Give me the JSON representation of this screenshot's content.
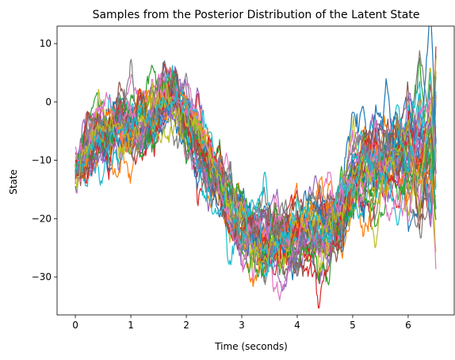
{
  "chart_data": {
    "type": "line",
    "title": "Samples from the Posterior Distribution of the Latent State",
    "xlabel": "Time (seconds)",
    "ylabel": "State",
    "xlim": [
      -0.33,
      6.83
    ],
    "ylim": [
      -36.5,
      13
    ],
    "xticks": [
      0,
      1,
      2,
      3,
      4,
      5,
      6
    ],
    "yticks": [
      -30,
      -20,
      -10,
      0,
      10
    ],
    "ytick_labels": [
      "−30",
      "−20",
      "−10",
      "0",
      "10"
    ],
    "grid": false,
    "legend": "none",
    "colors": [
      "#1f77b4",
      "#ff7f0e",
      "#2ca02c",
      "#d62728",
      "#9467bd",
      "#8c564b",
      "#e377c2",
      "#7f7f7f",
      "#bcbd22",
      "#17becf"
    ],
    "x_range": [
      0,
      6.5
    ],
    "n_samples": 40,
    "anchors": [
      {
        "t": 0.0,
        "y": -12,
        "sd": 0
      },
      {
        "t": 0.2,
        "y": -8,
        "sd": 2
      },
      {
        "t": 0.4,
        "y": -5,
        "sd": 3
      },
      {
        "t": 0.6,
        "y": -6,
        "sd": 3
      },
      {
        "t": 0.8,
        "y": -4,
        "sd": 3
      },
      {
        "t": 1.0,
        "y": -5,
        "sd": 3
      },
      {
        "t": 1.2,
        "y": -5,
        "sd": 3
      },
      {
        "t": 1.4,
        "y": -2,
        "sd": 3
      },
      {
        "t": 1.6,
        "y": 1,
        "sd": 3
      },
      {
        "t": 1.8,
        "y": 1,
        "sd": 2.5
      },
      {
        "t": 2.0,
        "y": -3,
        "sd": 3
      },
      {
        "t": 2.2,
        "y": -7,
        "sd": 3
      },
      {
        "t": 2.4,
        "y": -11,
        "sd": 3
      },
      {
        "t": 2.6,
        "y": -14,
        "sd": 3
      },
      {
        "t": 2.8,
        "y": -18,
        "sd": 3
      },
      {
        "t": 3.0,
        "y": -21,
        "sd": 3
      },
      {
        "t": 3.2,
        "y": -23,
        "sd": 3
      },
      {
        "t": 3.4,
        "y": -24,
        "sd": 3
      },
      {
        "t": 3.6,
        "y": -23,
        "sd": 3
      },
      {
        "t": 3.8,
        "y": -24,
        "sd": 3.5
      },
      {
        "t": 4.0,
        "y": -23,
        "sd": 3.5
      },
      {
        "t": 4.2,
        "y": -22,
        "sd": 3.5
      },
      {
        "t": 4.4,
        "y": -22,
        "sd": 4
      },
      {
        "t": 4.6,
        "y": -21,
        "sd": 4
      },
      {
        "t": 4.8,
        "y": -18,
        "sd": 4
      },
      {
        "t": 5.0,
        "y": -13,
        "sd": 4
      },
      {
        "t": 5.2,
        "y": -11,
        "sd": 4.5
      },
      {
        "t": 5.4,
        "y": -10,
        "sd": 5
      },
      {
        "t": 5.6,
        "y": -11,
        "sd": 5
      },
      {
        "t": 5.8,
        "y": -10,
        "sd": 5.5
      },
      {
        "t": 6.0,
        "y": -9,
        "sd": 6
      },
      {
        "t": 6.2,
        "y": -9,
        "sd": 7
      },
      {
        "t": 6.4,
        "y": -7,
        "sd": 8
      },
      {
        "t": 6.5,
        "y": -7,
        "sd": 9
      }
    ]
  }
}
